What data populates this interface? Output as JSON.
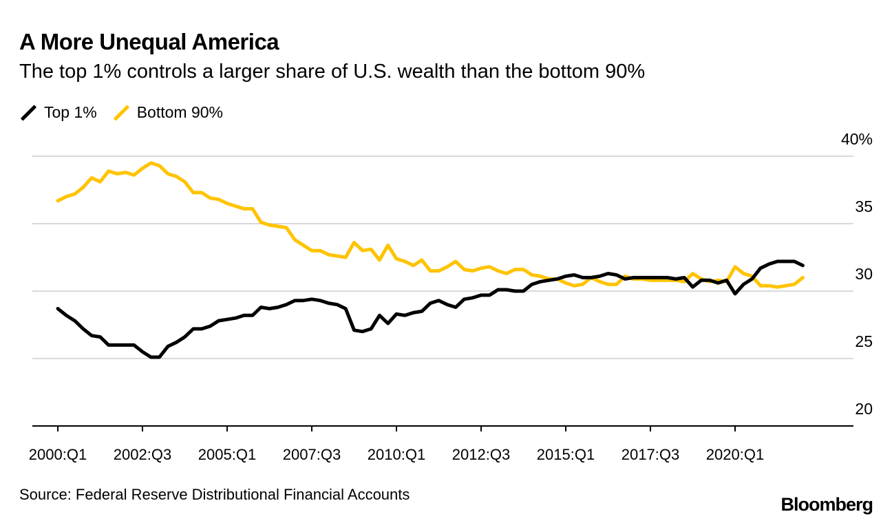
{
  "chart_data": {
    "type": "line",
    "title": "A More Unequal America",
    "subtitle": "The top 1% controls a larger share of U.S. wealth than the bottom 90%",
    "x_start_year": 2000,
    "x_start_quarter": 1,
    "x_frequency": "quarterly",
    "x_tick_labels": [
      "2000:Q1",
      "2002:Q3",
      "2005:Q1",
      "2007:Q3",
      "2010:Q1",
      "2012:Q3",
      "2015:Q1",
      "2017:Q3",
      "2020:Q1"
    ],
    "y_tick_labels": [
      "40%",
      "35",
      "30",
      "25",
      "20"
    ],
    "y_ticks": [
      40,
      35,
      30,
      25,
      20
    ],
    "ylim": [
      20,
      40
    ],
    "ylabel": "",
    "xlabel": "",
    "grid": true,
    "legend_placement": "top-left",
    "series": [
      {
        "name": "Top 1%",
        "color": "#000000",
        "values": [
          28.7,
          28.2,
          27.8,
          27.2,
          26.7,
          26.6,
          26.0,
          26.0,
          26.0,
          26.0,
          25.5,
          25.1,
          25.1,
          25.9,
          26.2,
          26.6,
          27.2,
          27.2,
          27.4,
          27.8,
          27.9,
          28.0,
          28.2,
          28.2,
          28.8,
          28.7,
          28.8,
          29.0,
          29.3,
          29.3,
          29.4,
          29.3,
          29.1,
          29.0,
          28.7,
          27.1,
          27.0,
          27.2,
          28.2,
          27.6,
          28.3,
          28.2,
          28.4,
          28.5,
          29.1,
          29.3,
          29.0,
          28.8,
          29.4,
          29.5,
          29.7,
          29.7,
          30.1,
          30.1,
          30.0,
          30.0,
          30.5,
          30.7,
          30.8,
          30.9,
          31.1,
          31.2,
          31.0,
          31.0,
          31.1,
          31.3,
          31.2,
          30.9,
          31.0,
          31.0,
          31.0,
          31.0,
          31.0,
          30.9,
          31.0,
          30.3,
          30.8,
          30.8,
          30.6,
          30.8,
          29.8,
          30.5,
          30.9,
          31.7,
          32.0,
          32.2,
          32.2,
          32.2,
          31.9
        ]
      },
      {
        "name": "Bottom 90%",
        "color": "#FFC300",
        "values": [
          36.7,
          37.0,
          37.2,
          37.7,
          38.4,
          38.1,
          38.9,
          38.7,
          38.8,
          38.6,
          39.1,
          39.5,
          39.3,
          38.7,
          38.5,
          38.1,
          37.3,
          37.3,
          36.9,
          36.8,
          36.5,
          36.3,
          36.1,
          36.1,
          35.1,
          34.9,
          34.8,
          34.7,
          33.8,
          33.4,
          33.0,
          33.0,
          32.7,
          32.6,
          32.5,
          33.6,
          33.0,
          33.1,
          32.3,
          33.4,
          32.4,
          32.2,
          31.9,
          32.3,
          31.5,
          31.5,
          31.8,
          32.2,
          31.6,
          31.5,
          31.7,
          31.8,
          31.5,
          31.3,
          31.6,
          31.6,
          31.2,
          31.1,
          30.9,
          30.9,
          30.6,
          30.4,
          30.5,
          31.0,
          30.7,
          30.5,
          30.5,
          31.1,
          30.9,
          30.9,
          30.8,
          30.8,
          30.8,
          30.8,
          30.7,
          31.3,
          30.9,
          30.7,
          30.8,
          30.7,
          31.8,
          31.3,
          31.1,
          30.4,
          30.4,
          30.3,
          30.4,
          30.5,
          31.0
        ]
      }
    ],
    "source": "Source: Federal Reserve Distributional Financial Accounts",
    "brand": "Bloomberg"
  }
}
